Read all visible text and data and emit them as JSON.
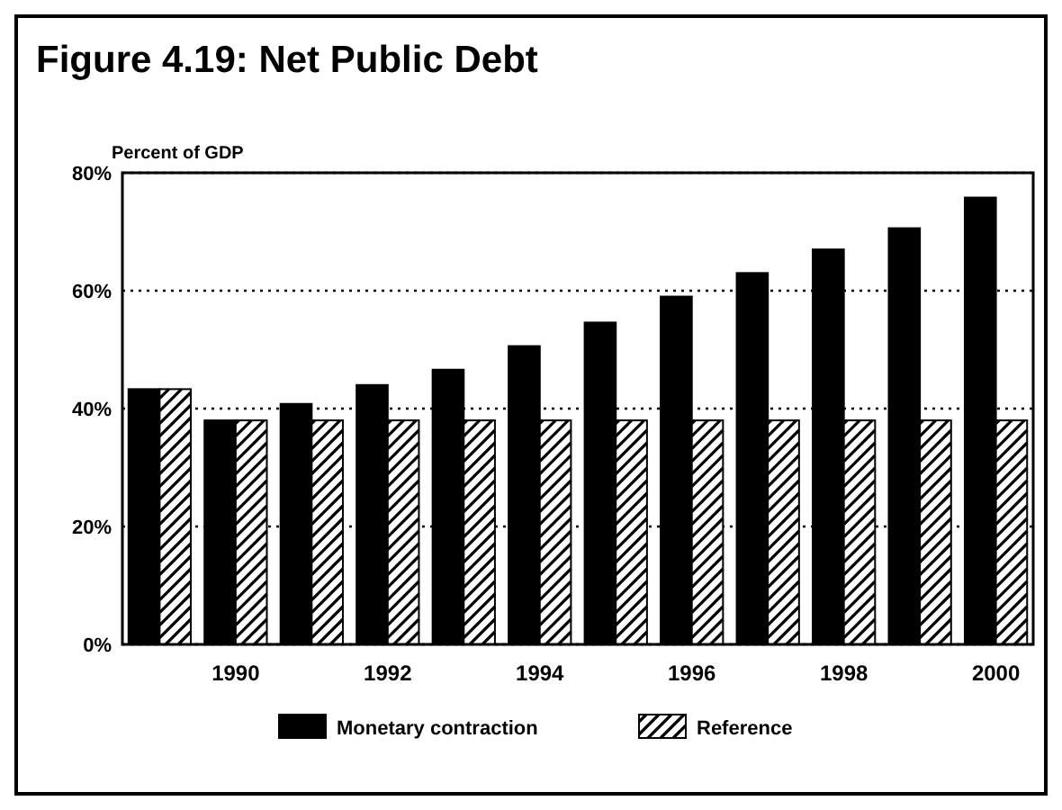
{
  "chart_data": {
    "type": "bar",
    "title": "Figure 4.19:  Net Public Debt",
    "ylabel": "Percent of GDP",
    "categories": [
      null,
      "1990",
      null,
      "1992",
      null,
      "1994",
      null,
      "1996",
      null,
      "1998",
      null,
      "2000"
    ],
    "series": [
      {
        "name": "Monetary contraction",
        "color": "#000000",
        "values": [
          43.3,
          38,
          40.8,
          44,
          46.6,
          50.6,
          54.6,
          59,
          63,
          67,
          70.6,
          75.8
        ]
      },
      {
        "name": "Reference",
        "color": "#ffffff",
        "values": [
          43.3,
          38,
          38,
          38,
          38,
          38,
          38,
          38,
          38,
          38,
          38,
          38
        ]
      }
    ],
    "ylim": [
      0,
      80
    ],
    "yticks": [
      {
        "value": 0,
        "label": "0%"
      },
      {
        "value": 20,
        "label": "20%"
      },
      {
        "value": 40,
        "label": "40%"
      },
      {
        "value": 60,
        "label": "60%"
      },
      {
        "value": 80,
        "label": "80%"
      }
    ],
    "grid": "y",
    "legend": "bottom"
  }
}
